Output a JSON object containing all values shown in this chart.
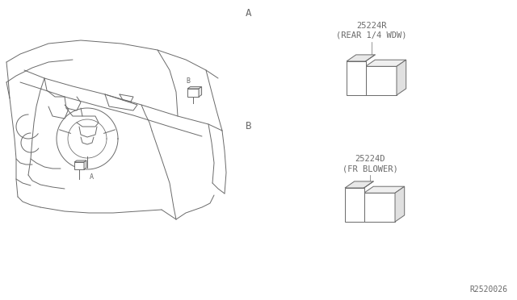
{
  "bg_color": "#ffffff",
  "line_color": "#6a6a6a",
  "text_color": "#6a6a6a",
  "title_A": "A",
  "title_B": "B",
  "part1_number": "25224R",
  "part1_label": "(REAR 1/4 WDW)",
  "part2_number": "25224D",
  "part2_label": "(FR BLOWER)",
  "ref_number": "R2520026",
  "fig_width": 6.4,
  "fig_height": 3.72,
  "dpi": 100
}
